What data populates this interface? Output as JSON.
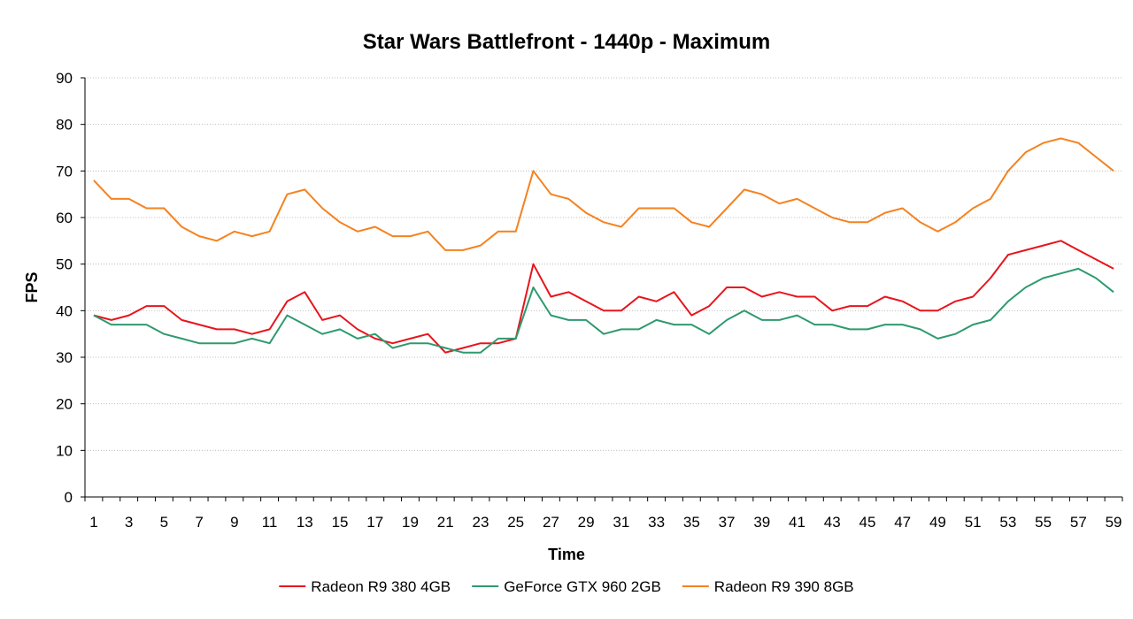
{
  "chart_data": {
    "type": "line",
    "title": "Star Wars Battlefront - 1440p - Maximum",
    "xlabel": "Time",
    "ylabel": "FPS",
    "ylim": [
      0,
      90
    ],
    "yticks": [
      0,
      10,
      20,
      30,
      40,
      50,
      60,
      70,
      80,
      90
    ],
    "xlim": [
      1,
      59
    ],
    "xticks": [
      1,
      3,
      5,
      7,
      9,
      11,
      13,
      15,
      17,
      19,
      21,
      23,
      25,
      27,
      29,
      31,
      33,
      35,
      37,
      39,
      41,
      43,
      45,
      47,
      49,
      51,
      53,
      55,
      57,
      59
    ],
    "grid": true,
    "legend_position": "bottom",
    "series": [
      {
        "name": "Radeon R9 380 4GB",
        "color": "#e8141c",
        "values": [
          39,
          38,
          39,
          41,
          41,
          38,
          37,
          36,
          36,
          35,
          36,
          42,
          44,
          38,
          39,
          36,
          34,
          33,
          34,
          35,
          31,
          32,
          33,
          33,
          34,
          50,
          43,
          44,
          42,
          40,
          40,
          43,
          42,
          44,
          39,
          41,
          45,
          45,
          43,
          44,
          43,
          43,
          40,
          41,
          41,
          43,
          42,
          40,
          40,
          42,
          43,
          47,
          52,
          53,
          54,
          55,
          53,
          51,
          49
        ]
      },
      {
        "name": "GeForce GTX 960 2GB",
        "color": "#2e9a6e",
        "values": [
          39,
          37,
          37,
          37,
          35,
          34,
          33,
          33,
          33,
          34,
          33,
          39,
          37,
          35,
          36,
          34,
          35,
          32,
          33,
          33,
          32,
          31,
          31,
          34,
          34,
          45,
          39,
          38,
          38,
          35,
          36,
          36,
          38,
          37,
          37,
          35,
          38,
          40,
          38,
          38,
          39,
          37,
          37,
          36,
          36,
          37,
          37,
          36,
          34,
          35,
          37,
          38,
          42,
          45,
          47,
          48,
          49,
          47,
          44
        ]
      },
      {
        "name": "Radeon R9 390 8GB",
        "color": "#f5821f",
        "values": [
          68,
          64,
          64,
          62,
          62,
          58,
          56,
          55,
          57,
          56,
          57,
          65,
          66,
          62,
          59,
          57,
          58,
          56,
          56,
          57,
          53,
          53,
          54,
          57,
          57,
          70,
          65,
          64,
          61,
          59,
          58,
          62,
          62,
          62,
          59,
          58,
          62,
          66,
          65,
          63,
          64,
          62,
          60,
          59,
          59,
          61,
          62,
          59,
          57,
          59,
          62,
          64,
          70,
          74,
          76,
          77,
          76,
          73,
          70
        ]
      }
    ]
  }
}
